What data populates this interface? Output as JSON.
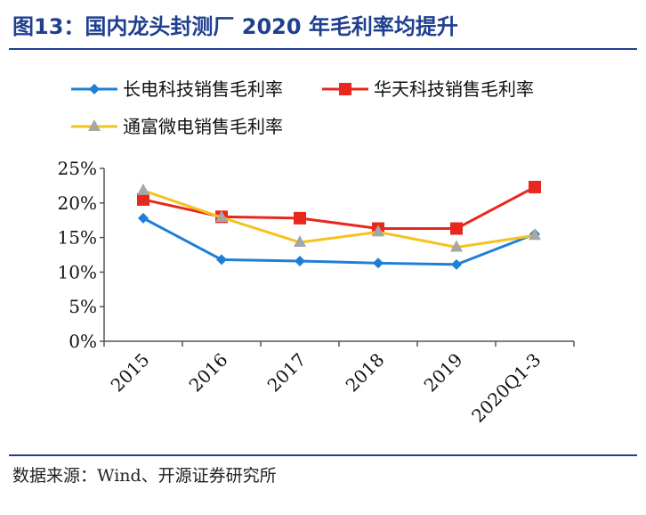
{
  "header": {
    "title": "图13：国内龙头封测厂 2020 年毛利率均提升"
  },
  "footer": {
    "source": "数据来源：Wind、开源证券研究所"
  },
  "chart_data": {
    "type": "line",
    "title": "图13：国内龙头封测厂 2020 年毛利率均提升",
    "xlabel": "",
    "ylabel": "",
    "categories": [
      "2015",
      "2016",
      "2017",
      "2018",
      "2019",
      "2020Q1-3"
    ],
    "ylim": [
      0,
      25
    ],
    "yticks": [
      "0%",
      "5%",
      "10%",
      "15%",
      "20%",
      "25%"
    ],
    "grid": false,
    "legend_position": "top",
    "series": [
      {
        "name": "长电科技销售毛利率",
        "color": "#1f7fd6",
        "marker": "diamond",
        "values": [
          17.8,
          11.8,
          11.6,
          11.3,
          11.1,
          15.5
        ]
      },
      {
        "name": "华天科技销售毛利率",
        "color": "#e8281e",
        "marker": "square",
        "values": [
          20.5,
          18.0,
          17.8,
          16.3,
          16.3,
          22.3
        ]
      },
      {
        "name": "通富微电销售毛利率",
        "color": "#f5c31d",
        "marker": "triangle",
        "values": [
          21.8,
          17.9,
          14.3,
          15.8,
          13.6,
          15.3
        ]
      }
    ],
    "marker_colors": {
      "triangle": "#a6a6a6"
    }
  }
}
